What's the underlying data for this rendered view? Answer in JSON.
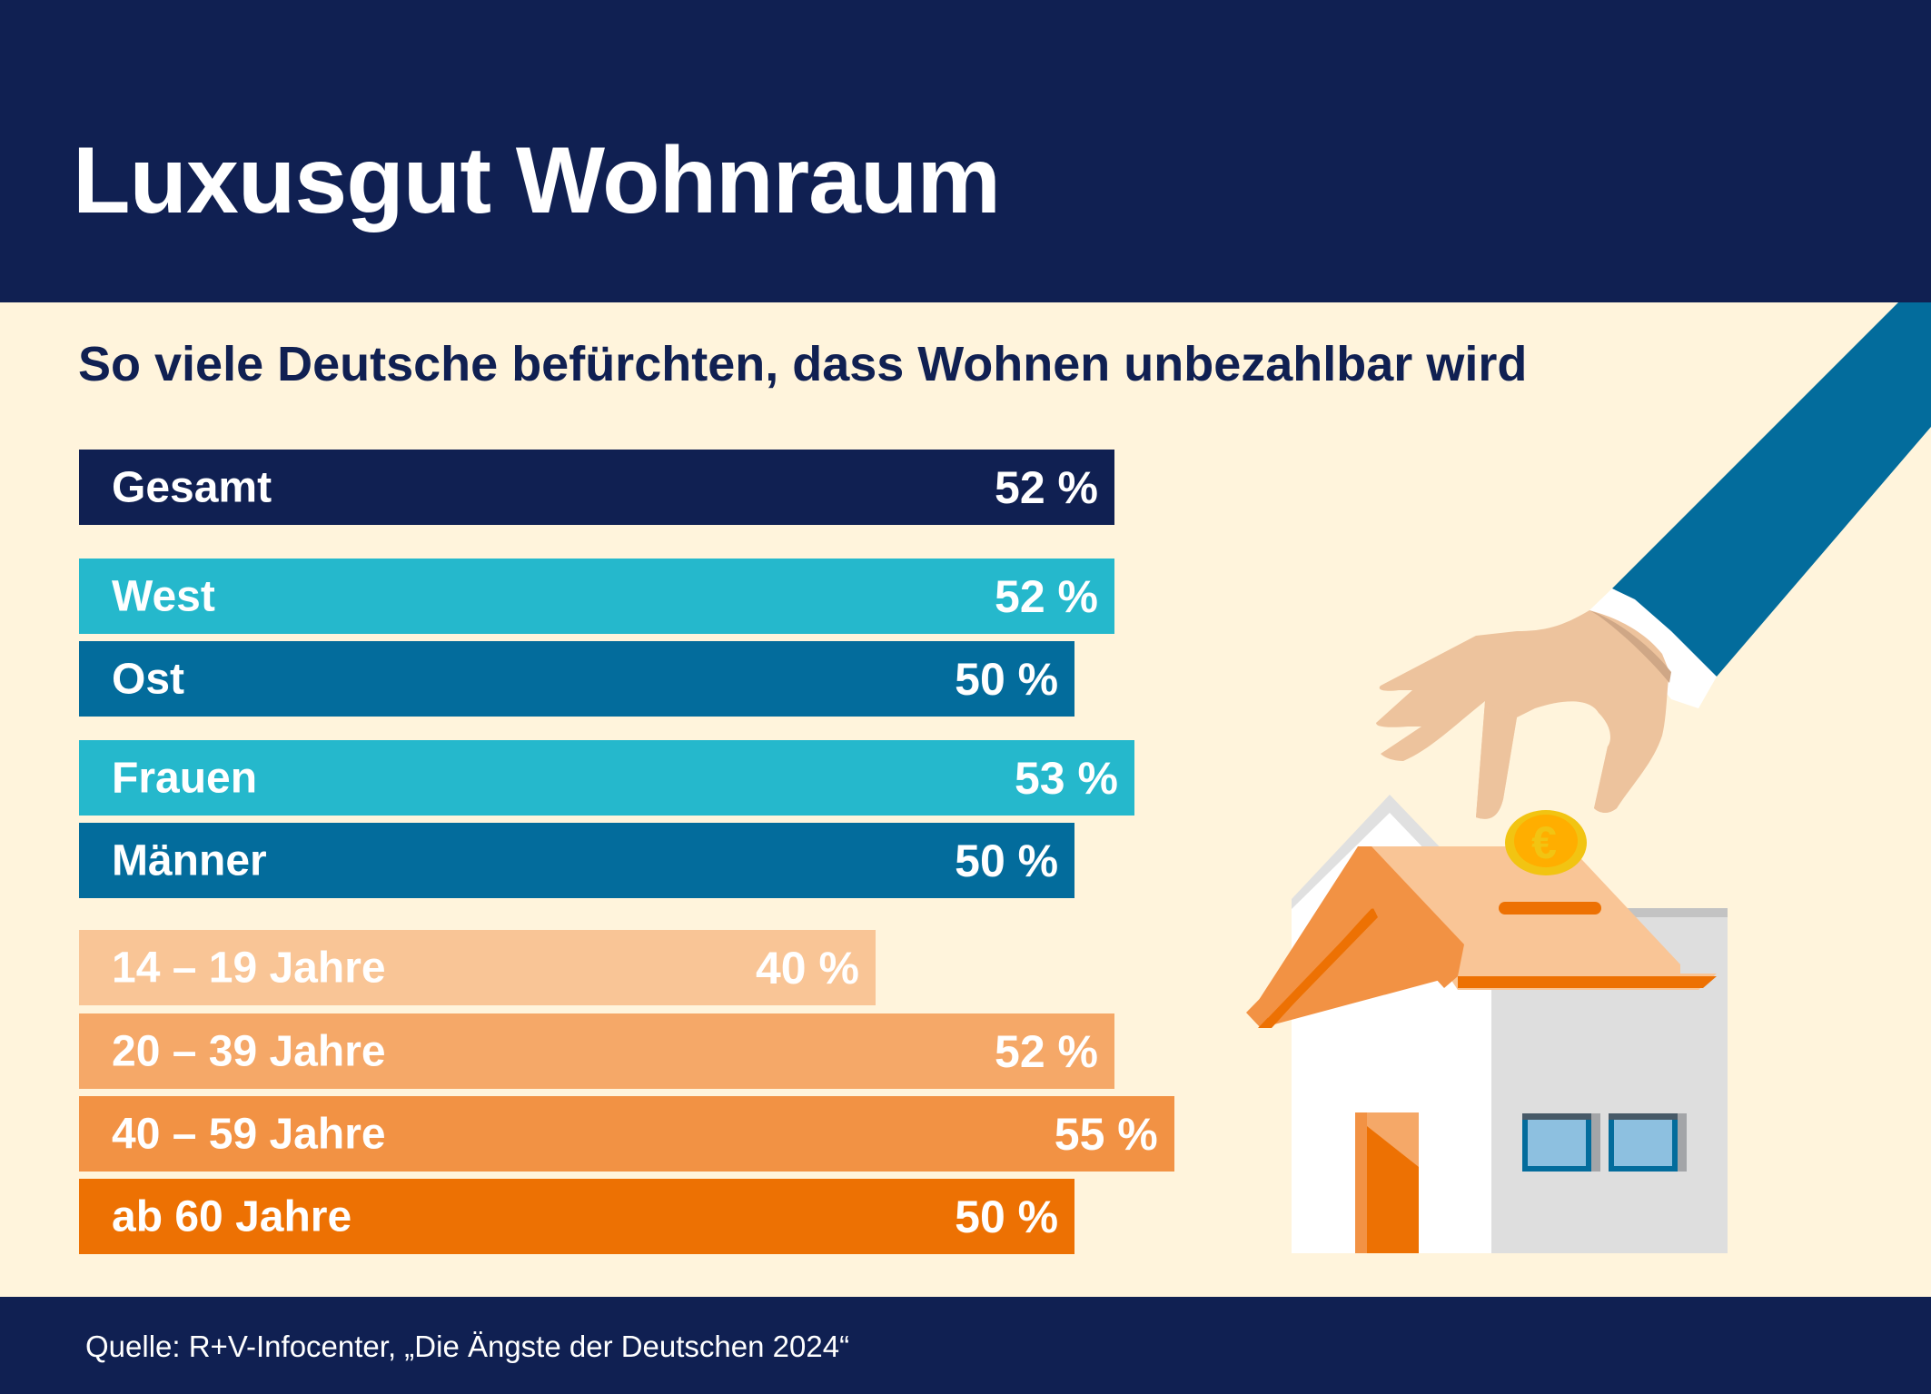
{
  "header": {
    "title": "Luxusgut Wohnraum"
  },
  "subtitle": "So viele Deutsche befürchten, dass Wohnen unbezahlbar wird",
  "footer": {
    "source": "Quelle: R+V-Infocenter, „Die Ängste der Deutschen 2024“"
  },
  "colors": {
    "navy": "#102052",
    "cream": "#fff4dc",
    "cyan": "#25b8cc",
    "teal_blue": "#036c9c",
    "peach_light": "#f9c596",
    "peach": "#f5a868",
    "orange_mid": "#f29244",
    "orange": "#ed7103"
  },
  "chart_data": {
    "type": "bar",
    "orientation": "horizontal",
    "title": "So viele Deutsche befürchten, dass Wohnen unbezahlbar wird",
    "unit": "%",
    "xlim": [
      0,
      55
    ],
    "grid": false,
    "legend": "none",
    "categories": [
      "Gesamt",
      "West",
      "Ost",
      "Frauen",
      "Männer",
      "14 – 19 Jahre",
      "20 – 39 Jahre",
      "40 – 59 Jahre",
      "ab 60 Jahre"
    ],
    "values": [
      52,
      52,
      50,
      53,
      50,
      40,
      52,
      55,
      50
    ],
    "value_labels": [
      "52 %",
      "52 %",
      "50 %",
      "53 %",
      "50 %",
      "40 %",
      "52 %",
      "55 %",
      "50 %"
    ],
    "groups": [
      {
        "name": "total",
        "items": [
          "Gesamt"
        ]
      },
      {
        "name": "region",
        "items": [
          "West",
          "Ost"
        ]
      },
      {
        "name": "gender",
        "items": [
          "Frauen",
          "Männer"
        ]
      },
      {
        "name": "age",
        "items": [
          "14 – 19 Jahre",
          "20 – 39 Jahre",
          "40 – 59 Jahre",
          "ab 60 Jahre"
        ]
      }
    ],
    "bar_colors": [
      "#102052",
      "#25b8cc",
      "#036c9c",
      "#25b8cc",
      "#036c9c",
      "#f9c596",
      "#f5a868",
      "#f29244",
      "#ed7103"
    ]
  },
  "illustration": {
    "description": "hand dropping euro coin into house-shaped piggy bank",
    "icons": [
      "hand-icon",
      "euro-coin-icon",
      "house-icon"
    ],
    "coin_symbol": "€"
  }
}
